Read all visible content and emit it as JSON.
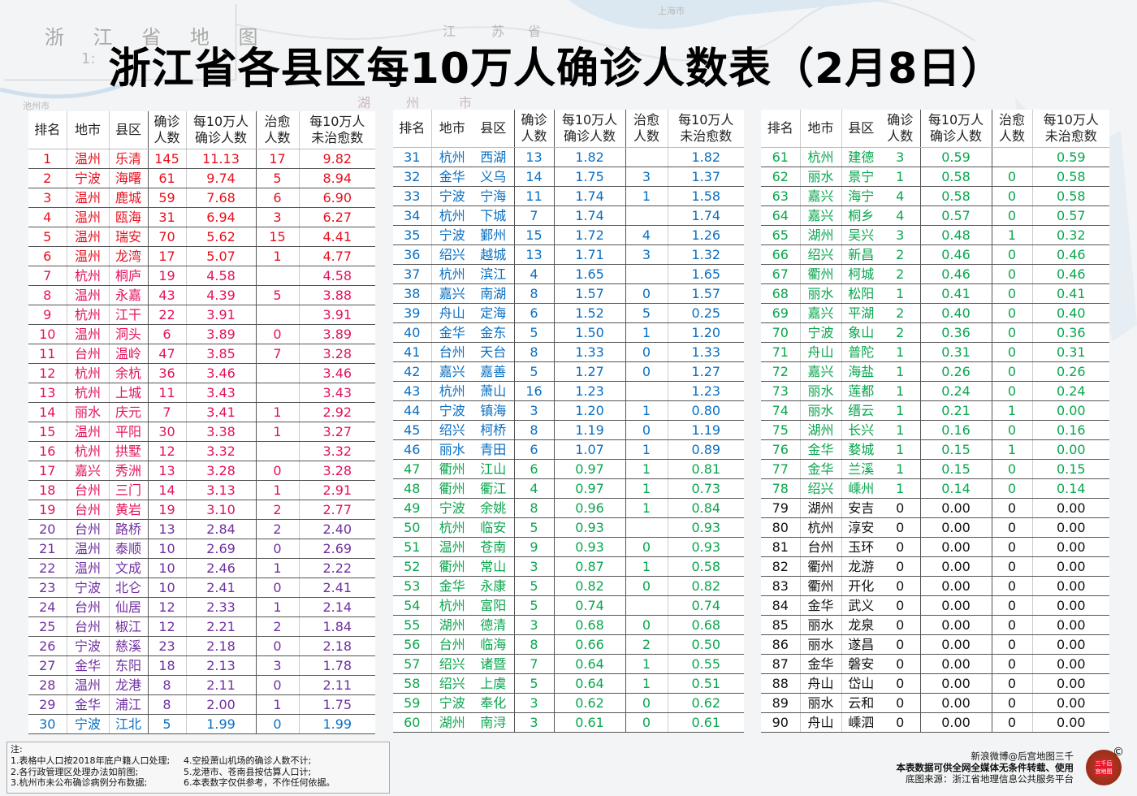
{
  "title": "浙江省各县区每10万人确诊人数表（2月8日）",
  "map": {
    "title": "浙 江 省 地 图",
    "scale": "1:",
    "place_labels": [
      "上海市",
      "池州市",
      "江",
      "苏",
      "省",
      "湖",
      "州",
      "市"
    ]
  },
  "headers": {
    "rank": "排名",
    "city": "地市",
    "county": "县区",
    "confirmed_line1": "确诊",
    "confirmed_line2": "人数",
    "per100k_line1": "每10万人",
    "per100k_line2": "确诊人数",
    "cured_line1": "治愈",
    "cured_line2": "人数",
    "uncured_line1": "每10万人",
    "uncured_line2": "未治愈数"
  },
  "tier_colors": {
    "red": "#e8101e",
    "pink": "#e3125e",
    "purple": "#7030a0",
    "blue": "#0a6fc2",
    "green": "#0aa64e",
    "black": "#111111"
  },
  "rows": [
    [
      "1",
      "温州",
      "乐清",
      "145",
      "11.13",
      "17",
      "9.82",
      "red"
    ],
    [
      "2",
      "宁波",
      "海曙",
      "61",
      "9.74",
      "5",
      "8.94",
      "red"
    ],
    [
      "3",
      "温州",
      "鹿城",
      "59",
      "7.68",
      "6",
      "6.90",
      "red"
    ],
    [
      "4",
      "温州",
      "瓯海",
      "31",
      "6.94",
      "3",
      "6.27",
      "red"
    ],
    [
      "5",
      "温州",
      "瑞安",
      "70",
      "5.62",
      "15",
      "4.41",
      "red"
    ],
    [
      "6",
      "温州",
      "龙湾",
      "17",
      "5.07",
      "1",
      "4.77",
      "red"
    ],
    [
      "7",
      "杭州",
      "桐庐",
      "19",
      "4.58",
      "",
      "4.58",
      "pink"
    ],
    [
      "8",
      "温州",
      "永嘉",
      "43",
      "4.39",
      "5",
      "3.88",
      "pink"
    ],
    [
      "9",
      "杭州",
      "江干",
      "22",
      "3.91",
      "",
      "3.91",
      "pink"
    ],
    [
      "10",
      "温州",
      "洞头",
      "6",
      "3.89",
      "0",
      "3.89",
      "pink"
    ],
    [
      "11",
      "台州",
      "温岭",
      "47",
      "3.85",
      "7",
      "3.28",
      "pink"
    ],
    [
      "12",
      "杭州",
      "余杭",
      "36",
      "3.46",
      "",
      "3.46",
      "pink"
    ],
    [
      "13",
      "杭州",
      "上城",
      "11",
      "3.43",
      "",
      "3.43",
      "pink"
    ],
    [
      "14",
      "丽水",
      "庆元",
      "7",
      "3.41",
      "1",
      "2.92",
      "pink"
    ],
    [
      "15",
      "温州",
      "平阳",
      "30",
      "3.38",
      "1",
      "3.27",
      "pink"
    ],
    [
      "16",
      "杭州",
      "拱墅",
      "12",
      "3.32",
      "",
      "3.32",
      "pink"
    ],
    [
      "17",
      "嘉兴",
      "秀洲",
      "13",
      "3.28",
      "0",
      "3.28",
      "pink"
    ],
    [
      "18",
      "台州",
      "三门",
      "14",
      "3.13",
      "1",
      "2.91",
      "pink"
    ],
    [
      "19",
      "台州",
      "黄岩",
      "19",
      "3.10",
      "2",
      "2.77",
      "pink"
    ],
    [
      "20",
      "台州",
      "路桥",
      "13",
      "2.84",
      "2",
      "2.40",
      "purple"
    ],
    [
      "21",
      "温州",
      "泰顺",
      "10",
      "2.69",
      "0",
      "2.69",
      "purple"
    ],
    [
      "22",
      "温州",
      "文成",
      "10",
      "2.46",
      "1",
      "2.22",
      "purple"
    ],
    [
      "23",
      "宁波",
      "北仑",
      "10",
      "2.41",
      "0",
      "2.41",
      "purple"
    ],
    [
      "24",
      "台州",
      "仙居",
      "12",
      "2.33",
      "1",
      "2.14",
      "purple"
    ],
    [
      "25",
      "台州",
      "椒江",
      "12",
      "2.21",
      "2",
      "1.84",
      "purple"
    ],
    [
      "26",
      "宁波",
      "慈溪",
      "23",
      "2.18",
      "0",
      "2.18",
      "purple"
    ],
    [
      "27",
      "金华",
      "东阳",
      "18",
      "2.13",
      "3",
      "1.78",
      "purple"
    ],
    [
      "28",
      "温州",
      "龙港",
      "8",
      "2.11",
      "0",
      "2.11",
      "purple"
    ],
    [
      "29",
      "金华",
      "浦江",
      "8",
      "2.00",
      "1",
      "1.75",
      "purple"
    ],
    [
      "30",
      "宁波",
      "江北",
      "5",
      "1.99",
      "0",
      "1.99",
      "blue"
    ],
    [
      "31",
      "杭州",
      "西湖",
      "13",
      "1.82",
      "",
      "1.82",
      "blue"
    ],
    [
      "32",
      "金华",
      "义乌",
      "14",
      "1.75",
      "3",
      "1.37",
      "blue"
    ],
    [
      "33",
      "宁波",
      "宁海",
      "11",
      "1.74",
      "1",
      "1.58",
      "blue"
    ],
    [
      "34",
      "杭州",
      "下城",
      "7",
      "1.74",
      "",
      "1.74",
      "blue"
    ],
    [
      "35",
      "宁波",
      "鄞州",
      "15",
      "1.72",
      "4",
      "1.26",
      "blue"
    ],
    [
      "36",
      "绍兴",
      "越城",
      "13",
      "1.71",
      "3",
      "1.32",
      "blue"
    ],
    [
      "37",
      "杭州",
      "滨江",
      "4",
      "1.65",
      "",
      "1.65",
      "blue"
    ],
    [
      "38",
      "嘉兴",
      "南湖",
      "8",
      "1.57",
      "0",
      "1.57",
      "blue"
    ],
    [
      "39",
      "舟山",
      "定海",
      "6",
      "1.52",
      "5",
      "0.25",
      "blue"
    ],
    [
      "40",
      "金华",
      "金东",
      "5",
      "1.50",
      "1",
      "1.20",
      "blue"
    ],
    [
      "41",
      "台州",
      "天台",
      "8",
      "1.33",
      "0",
      "1.33",
      "blue"
    ],
    [
      "42",
      "嘉兴",
      "嘉善",
      "5",
      "1.27",
      "0",
      "1.27",
      "blue"
    ],
    [
      "43",
      "杭州",
      "萧山",
      "16",
      "1.23",
      "",
      "1.23",
      "blue"
    ],
    [
      "44",
      "宁波",
      "镇海",
      "3",
      "1.20",
      "1",
      "0.80",
      "blue"
    ],
    [
      "45",
      "绍兴",
      "柯桥",
      "8",
      "1.19",
      "0",
      "1.19",
      "blue"
    ],
    [
      "46",
      "丽水",
      "青田",
      "6",
      "1.07",
      "1",
      "0.89",
      "blue"
    ],
    [
      "47",
      "衢州",
      "江山",
      "6",
      "0.97",
      "1",
      "0.81",
      "green"
    ],
    [
      "48",
      "衢州",
      "衢江",
      "4",
      "0.97",
      "1",
      "0.73",
      "green"
    ],
    [
      "49",
      "宁波",
      "余姚",
      "8",
      "0.96",
      "1",
      "0.84",
      "green"
    ],
    [
      "50",
      "杭州",
      "临安",
      "5",
      "0.93",
      "",
      "0.93",
      "green"
    ],
    [
      "51",
      "温州",
      "苍南",
      "9",
      "0.93",
      "0",
      "0.93",
      "green"
    ],
    [
      "52",
      "衢州",
      "常山",
      "3",
      "0.87",
      "1",
      "0.58",
      "green"
    ],
    [
      "53",
      "金华",
      "永康",
      "5",
      "0.82",
      "0",
      "0.82",
      "green"
    ],
    [
      "54",
      "杭州",
      "富阳",
      "5",
      "0.74",
      "",
      "0.74",
      "green"
    ],
    [
      "55",
      "湖州",
      "德清",
      "3",
      "0.68",
      "0",
      "0.68",
      "green"
    ],
    [
      "56",
      "台州",
      "临海",
      "8",
      "0.66",
      "2",
      "0.50",
      "green"
    ],
    [
      "57",
      "绍兴",
      "诸暨",
      "7",
      "0.64",
      "1",
      "0.55",
      "green"
    ],
    [
      "58",
      "绍兴",
      "上虞",
      "5",
      "0.64",
      "1",
      "0.51",
      "green"
    ],
    [
      "59",
      "宁波",
      "奉化",
      "3",
      "0.62",
      "0",
      "0.62",
      "green"
    ],
    [
      "60",
      "湖州",
      "南浔",
      "3",
      "0.61",
      "0",
      "0.61",
      "green"
    ],
    [
      "61",
      "杭州",
      "建德",
      "3",
      "0.59",
      "",
      "0.59",
      "green"
    ],
    [
      "62",
      "丽水",
      "景宁",
      "1",
      "0.58",
      "0",
      "0.58",
      "green"
    ],
    [
      "63",
      "嘉兴",
      "海宁",
      "4",
      "0.58",
      "0",
      "0.58",
      "green"
    ],
    [
      "64",
      "嘉兴",
      "桐乡",
      "4",
      "0.57",
      "0",
      "0.57",
      "green"
    ],
    [
      "65",
      "湖州",
      "吴兴",
      "3",
      "0.48",
      "1",
      "0.32",
      "green"
    ],
    [
      "66",
      "绍兴",
      "新昌",
      "2",
      "0.46",
      "0",
      "0.46",
      "green"
    ],
    [
      "67",
      "衢州",
      "柯城",
      "2",
      "0.46",
      "0",
      "0.46",
      "green"
    ],
    [
      "68",
      "丽水",
      "松阳",
      "1",
      "0.41",
      "0",
      "0.41",
      "green"
    ],
    [
      "69",
      "嘉兴",
      "平湖",
      "2",
      "0.40",
      "0",
      "0.40",
      "green"
    ],
    [
      "70",
      "宁波",
      "象山",
      "2",
      "0.36",
      "0",
      "0.36",
      "green"
    ],
    [
      "71",
      "舟山",
      "普陀",
      "1",
      "0.31",
      "0",
      "0.31",
      "green"
    ],
    [
      "72",
      "嘉兴",
      "海盐",
      "1",
      "0.26",
      "0",
      "0.26",
      "green"
    ],
    [
      "73",
      "丽水",
      "莲都",
      "1",
      "0.24",
      "0",
      "0.24",
      "green"
    ],
    [
      "74",
      "丽水",
      "缙云",
      "1",
      "0.21",
      "1",
      "0.00",
      "green"
    ],
    [
      "75",
      "湖州",
      "长兴",
      "1",
      "0.16",
      "0",
      "0.16",
      "green"
    ],
    [
      "76",
      "金华",
      "婺城",
      "1",
      "0.15",
      "1",
      "0.00",
      "green"
    ],
    [
      "77",
      "金华",
      "兰溪",
      "1",
      "0.15",
      "0",
      "0.15",
      "green"
    ],
    [
      "78",
      "绍兴",
      "嵊州",
      "1",
      "0.14",
      "0",
      "0.14",
      "green"
    ],
    [
      "79",
      "湖州",
      "安吉",
      "0",
      "0.00",
      "0",
      "0.00",
      "black"
    ],
    [
      "80",
      "杭州",
      "淳安",
      "0",
      "0.00",
      "0",
      "0.00",
      "black"
    ],
    [
      "81",
      "台州",
      "玉环",
      "0",
      "0.00",
      "0",
      "0.00",
      "black"
    ],
    [
      "82",
      "衢州",
      "龙游",
      "0",
      "0.00",
      "0",
      "0.00",
      "black"
    ],
    [
      "83",
      "衢州",
      "开化",
      "0",
      "0.00",
      "0",
      "0.00",
      "black"
    ],
    [
      "84",
      "金华",
      "武义",
      "0",
      "0.00",
      "0",
      "0.00",
      "black"
    ],
    [
      "85",
      "丽水",
      "龙泉",
      "0",
      "0.00",
      "0",
      "0.00",
      "black"
    ],
    [
      "86",
      "丽水",
      "遂昌",
      "0",
      "0.00",
      "0",
      "0.00",
      "black"
    ],
    [
      "87",
      "金华",
      "磐安",
      "0",
      "0.00",
      "0",
      "0.00",
      "black"
    ],
    [
      "88",
      "舟山",
      "岱山",
      "0",
      "0.00",
      "0",
      "0.00",
      "black"
    ],
    [
      "89",
      "丽水",
      "云和",
      "0",
      "0.00",
      "0",
      "0.00",
      "black"
    ],
    [
      "90",
      "舟山",
      "嵊泗",
      "0",
      "0.00",
      "0",
      "0.00",
      "black"
    ]
  ],
  "notes": {
    "heading": "注:",
    "items": [
      "1.表格中人口按2018年底户籍人口处理;",
      "2.各行政管理区处理办法如前图;",
      "3.杭州市未公布确诊病例分布数据;",
      "4.空投萧山机场的确诊人数不计;",
      "5.龙港市、苍南县按估算人口计;",
      "6.本表数字仅供参考，不作任何依据。"
    ]
  },
  "credits": {
    "weibo": "新浪微博@后宫地图三千",
    "license": "本表数据可供全网全媒体无条件转载、使用",
    "source": "底图来源：浙江省地理信息公共服务平台",
    "seal_text": "三千后宫地图",
    "copyright_symbol": "©"
  }
}
